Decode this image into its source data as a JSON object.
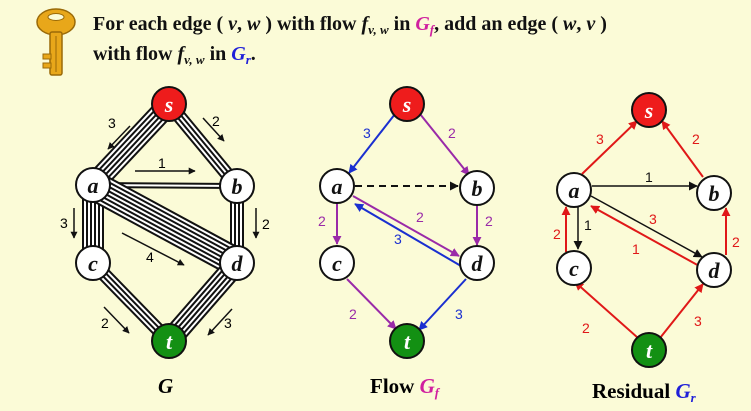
{
  "header": {
    "line1_parts": [
      "For each edge (",
      "v",
      ",",
      "w",
      ") with flow",
      "f",
      "v, w",
      "in",
      "G",
      "f",
      ", add an edge (",
      "w",
      ",",
      "v",
      ")"
    ],
    "line2_parts": [
      "with flow",
      "f",
      "v, w",
      "in",
      "G",
      "r",
      "."
    ]
  },
  "colors": {
    "background": "#fbfbd7",
    "source_node": "#ee1c1c",
    "sink_node": "#139013",
    "flow_blue": "#1a2fd0",
    "flow_purple": "#9a2aa8",
    "residual_red": "#e01818",
    "gf_magenta": "#d0209f",
    "gr_blue": "#2020d8",
    "key_gold": "#e8a71a"
  },
  "captions": {
    "g": "G",
    "flow_prefix": "Flow",
    "flow_symbol": "G",
    "flow_sub": "f",
    "residual_prefix": "Residual",
    "residual_symbol": "G",
    "residual_sub": "r"
  },
  "graphs": {
    "g": {
      "nodes": {
        "s": "s",
        "a": "a",
        "b": "b",
        "c": "c",
        "d": "d",
        "t": "t"
      },
      "edge_labels": {
        "s_a": "3",
        "s_b": "2",
        "a_b": "1",
        "a_c": "3",
        "b_d": "2",
        "a_d": "4",
        "c_t": "2",
        "d_t": "3"
      }
    },
    "gf": {
      "nodes": {
        "s": "s",
        "a": "a",
        "b": "b",
        "c": "c",
        "d": "d",
        "t": "t"
      },
      "edge_labels": {
        "s_a": "3",
        "s_b": "2",
        "a_c": "2",
        "b_d": "2",
        "a_d": "2",
        "d_a": "3",
        "c_t": "2",
        "d_t": "3"
      }
    },
    "gr": {
      "nodes": {
        "s": "s",
        "a": "a",
        "b": "b",
        "c": "c",
        "d": "d",
        "t": "t"
      },
      "edge_labels": {
        "a_s": "3",
        "b_s": "2",
        "a_b": "1",
        "c_a": "2",
        "a_c": "1",
        "d_b": "2",
        "a_d": "3",
        "d_a": "1",
        "t_c": "2",
        "t_d": "3"
      }
    }
  }
}
